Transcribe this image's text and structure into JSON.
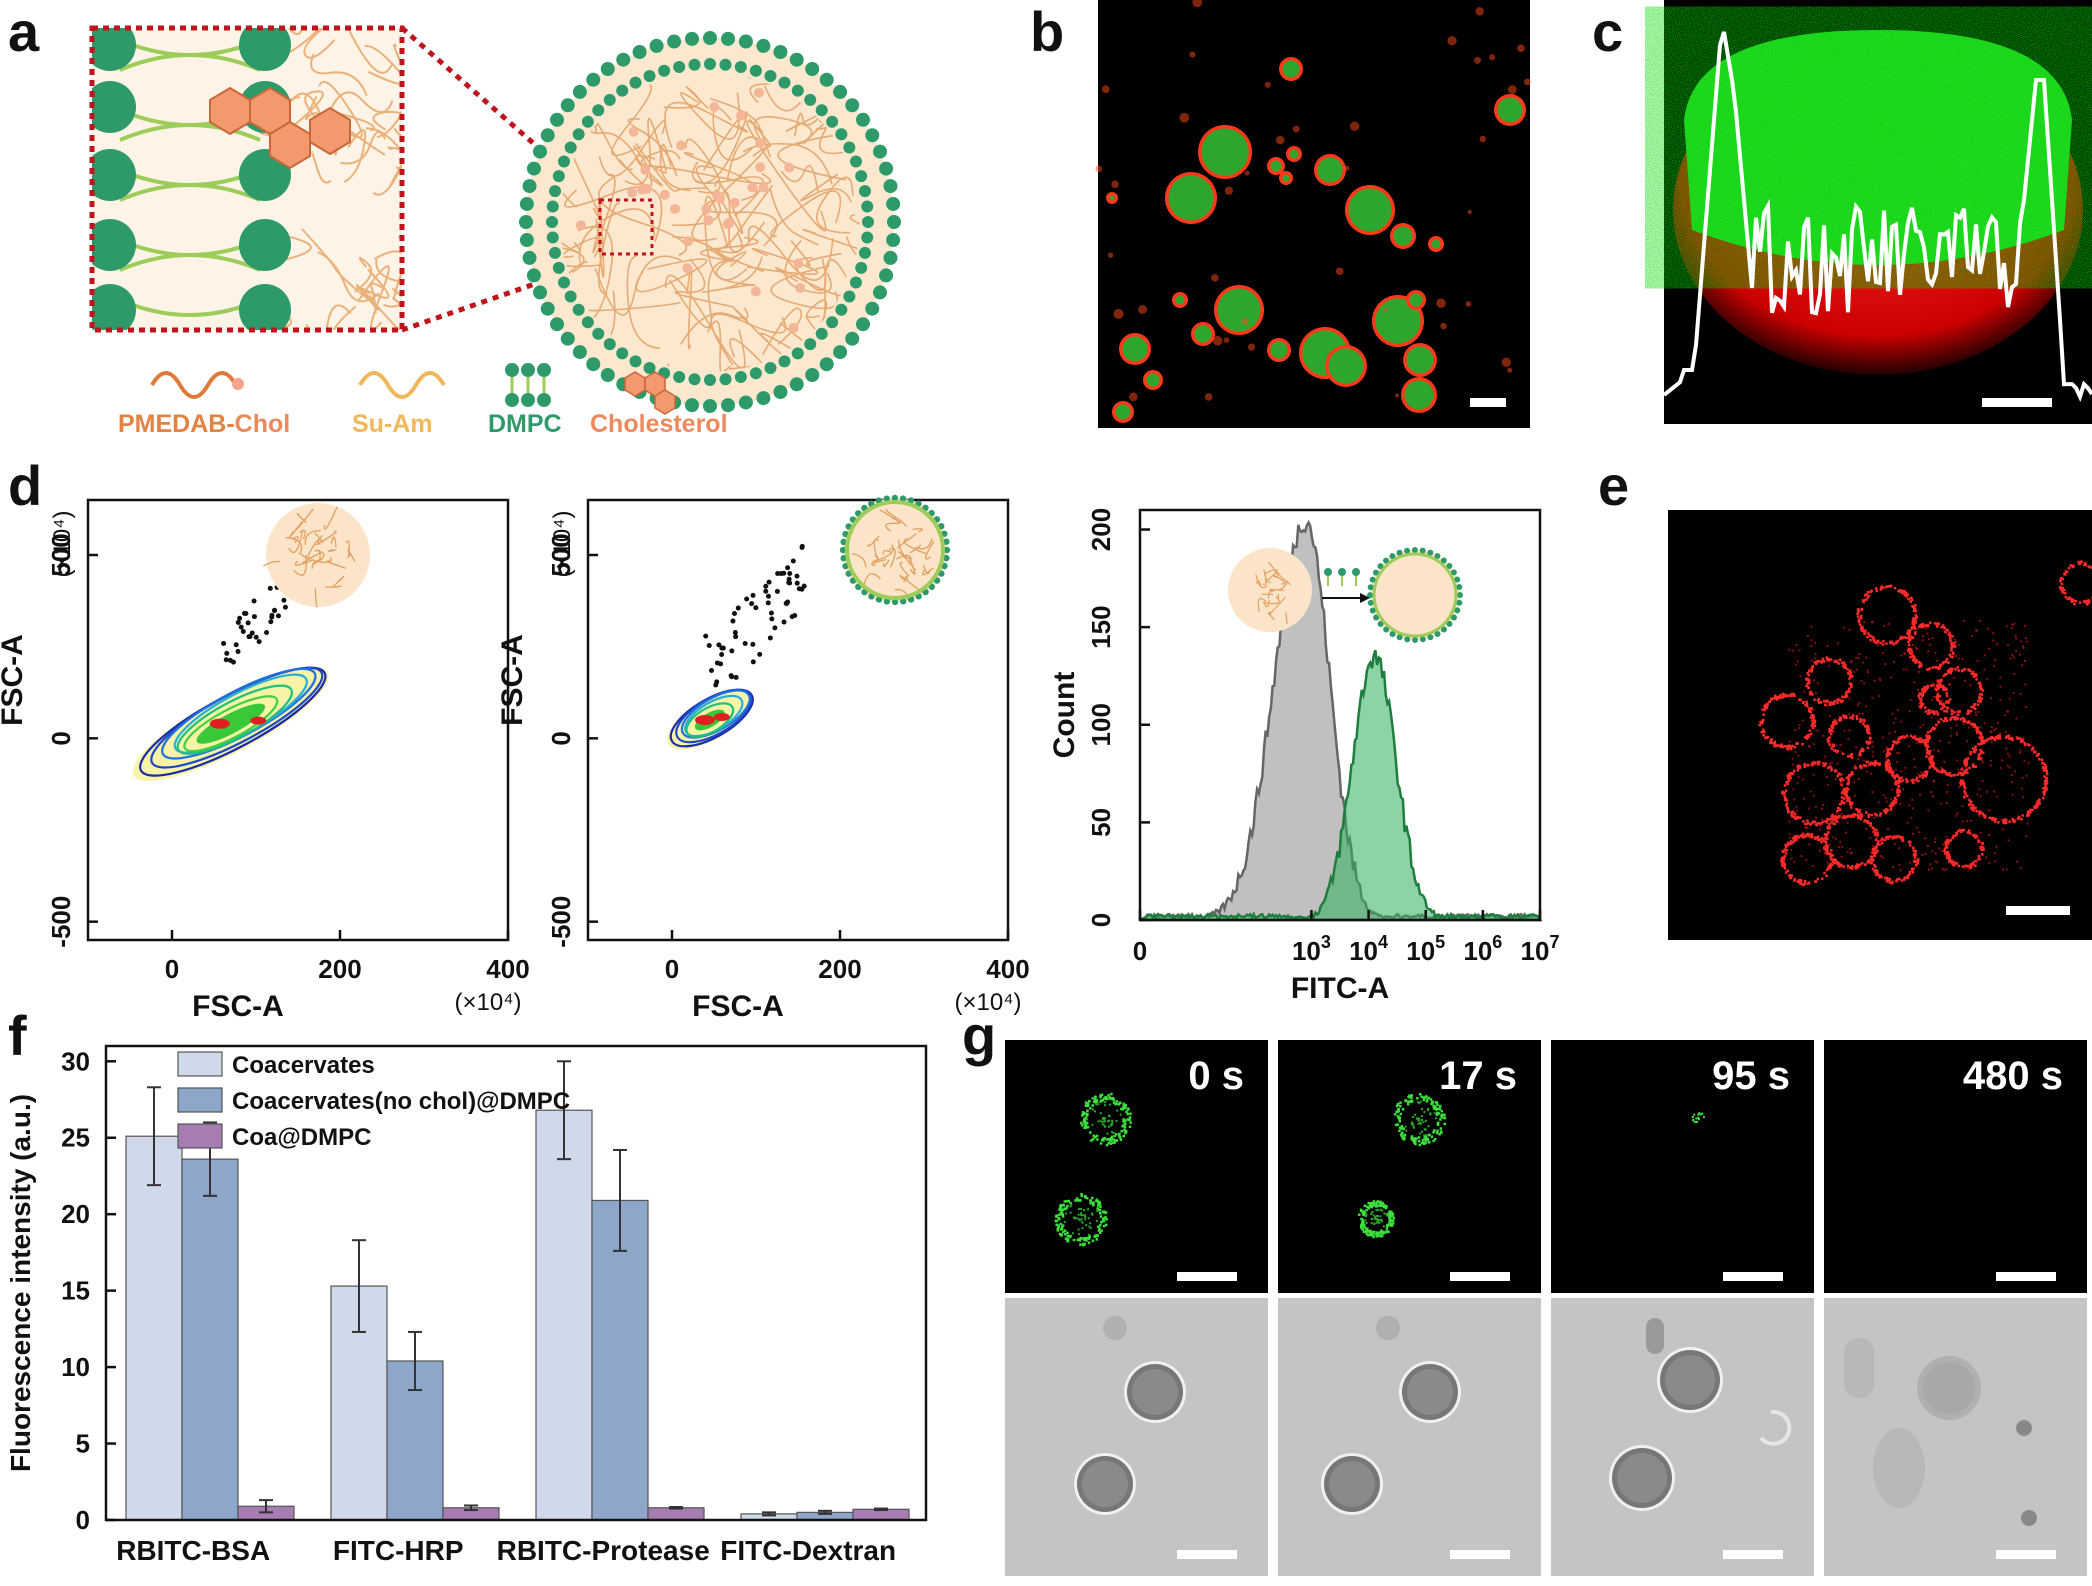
{
  "panels": {
    "a": {
      "label": "a",
      "legend": [
        {
          "prefix": "PMEDAB-",
          "suffix": "Chol",
          "color": "#e38342"
        },
        {
          "prefix": "Su-Am",
          "suffix": "",
          "color": "#f0b85a"
        },
        {
          "prefix": "DMPC",
          "suffix": "",
          "color": "#2e9a69"
        },
        {
          "prefix": "Cholesterol",
          "suffix": "",
          "color": "#ec8a5e"
        }
      ]
    },
    "b": {
      "label": "b"
    },
    "c": {
      "label": "c"
    },
    "d": {
      "label": "d"
    },
    "e": {
      "label": "e"
    },
    "f": {
      "label": "f"
    },
    "g": {
      "label": "g",
      "times": [
        "0 s",
        "17 s",
        "95 s",
        "480 s"
      ]
    }
  },
  "colors": {
    "coacervates": "#cfd9ea",
    "nochol": "#8ea6c9",
    "coa_dmpc": "#a67cb2",
    "dmpc_green": "#2e9a69",
    "membrane_red": "#ff2020",
    "interior_green": "#22c022"
  },
  "chart_data": [
    {
      "id": "d1",
      "type": "scatter",
      "xlabel": "FSC-A",
      "ylabel": "FSC-A",
      "xunit": "(×10⁴)",
      "yunit": "(×10⁴)",
      "xlim": [
        -100,
        400
      ],
      "ylim": [
        -550,
        650
      ],
      "xticks": [
        0,
        200,
        400
      ],
      "yticks": [
        -500,
        0,
        500
      ],
      "x_tick_labels": [
        "0",
        "200",
        "400"
      ],
      "y_tick_labels": [
        "-500",
        "0",
        "500"
      ]
    },
    {
      "id": "d2",
      "type": "scatter",
      "xlabel": "FSC-A",
      "ylabel": "FSC-A",
      "xunit": "(×10⁴)",
      "yunit": "(×10⁴)",
      "xlim": [
        -100,
        400
      ],
      "ylim": [
        -550,
        650
      ],
      "xticks": [
        0,
        200,
        400
      ],
      "yticks": [
        -500,
        0,
        500
      ],
      "x_tick_labels": [
        "0",
        "200",
        "400"
      ],
      "y_tick_labels": [
        "-500",
        "0",
        "500"
      ]
    },
    {
      "id": "d3",
      "type": "area",
      "xlabel": "FITC-A",
      "ylabel": "Count",
      "xlim": [
        0,
        7
      ],
      "ylim": [
        0,
        210
      ],
      "yticks": [
        0,
        50,
        100,
        150,
        200
      ],
      "y_tick_labels": [
        "0",
        "50",
        "100",
        "150",
        "200"
      ],
      "x_tick_labels": [
        {
          "b": "0",
          "e": ""
        },
        {
          "b": "10",
          "e": "3"
        },
        {
          "b": "10",
          "e": "4"
        },
        {
          "b": "10",
          "e": "5"
        },
        {
          "b": "10",
          "e": "6"
        },
        {
          "b": "10",
          "e": "7"
        }
      ],
      "x_tick_pos": [
        0,
        3,
        4,
        5,
        6,
        7
      ],
      "series": [
        {
          "color": "#8c8c8c",
          "peak": 2.9,
          "height": 205
        },
        {
          "color": "#2fae5e",
          "peak": 4.1,
          "height": 135
        }
      ]
    },
    {
      "id": "f",
      "type": "bar",
      "ylabel": "Fluorescence intensity (a.u.)",
      "ylim": [
        0,
        31
      ],
      "yticks": [
        0,
        5,
        10,
        15,
        20,
        25,
        30
      ],
      "y_tick_labels": [
        "0",
        "5",
        "10",
        "15",
        "20",
        "25",
        "30"
      ],
      "categories": [
        "RBITC-BSA",
        "FITC-HRP",
        "RBITC-Protease",
        "FITC-Dextran"
      ],
      "series": [
        {
          "name": "Coacervates",
          "values": [
            25.1,
            15.3,
            26.8,
            0.4
          ],
          "errors": [
            3.2,
            3.0,
            3.2,
            0.1
          ]
        },
        {
          "name": "Coacervates(no chol)@DMPC",
          "values": [
            23.6,
            10.4,
            20.9,
            0.5
          ],
          "errors": [
            2.4,
            1.9,
            3.3,
            0.1
          ]
        },
        {
          "name": "Coa@DMPC",
          "values": [
            0.9,
            0.8,
            0.8,
            0.7
          ],
          "errors": [
            0.4,
            0.15,
            0.05,
            0.05
          ]
        }
      ]
    }
  ]
}
